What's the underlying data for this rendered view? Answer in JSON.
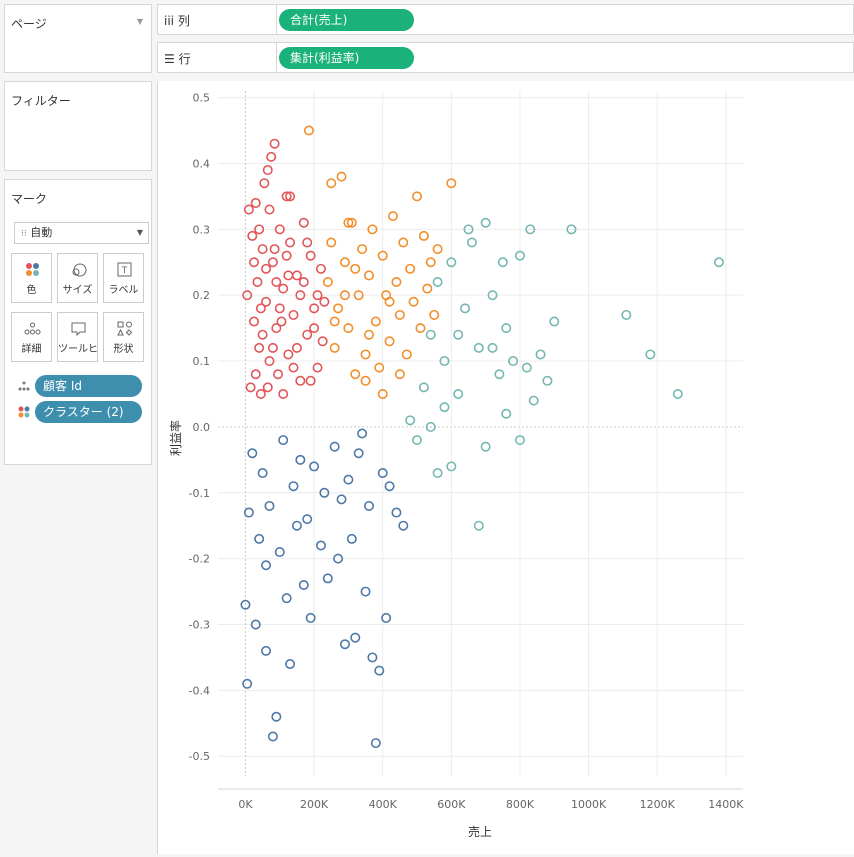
{
  "left_panel": {
    "pages_title": "ページ",
    "filters_title": "フィルター",
    "marks_title": "マーク",
    "mark_type": "自動",
    "mark_buttons": [
      {
        "label": "色",
        "icon": "color-icon"
      },
      {
        "label": "サイズ",
        "icon": "size-icon"
      },
      {
        "label": "ラベル",
        "icon": "label-icon"
      },
      {
        "label": "詳細",
        "icon": "detail-icon"
      },
      {
        "label": "ツールヒ…",
        "icon": "tooltip-icon"
      },
      {
        "label": "形状",
        "icon": "shape-icon"
      }
    ],
    "mark_fields": [
      {
        "label": "顧客 Id",
        "icon": "detail-dots-icon"
      },
      {
        "label": "クラスター (2)",
        "icon": "color-dots-icon"
      }
    ]
  },
  "shelves": {
    "columns_label": "iii  列",
    "columns_pill": "合計(売上)",
    "rows_label": "☰  行",
    "rows_pill": "集計(利益率)"
  },
  "colors": {
    "cluster1": "#e15759",
    "cluster2": "#f28e2b",
    "cluster3": "#76b7b2",
    "cluster4": "#4e79a7",
    "pill_green": "#1bb17a",
    "pill_blue": "#3e8eae"
  },
  "chart_data": {
    "type": "scatter",
    "xlabel": "売上",
    "ylabel": "利益率",
    "xlim": [
      -80000,
      1450000
    ],
    "ylim": [
      -0.53,
      0.51
    ],
    "x_ticks": [
      0,
      200000,
      400000,
      600000,
      800000,
      1000000,
      1200000,
      1400000
    ],
    "x_tick_labels": [
      "0K",
      "200K",
      "400K",
      "600K",
      "800K",
      "1000K",
      "1200K",
      "1400K"
    ],
    "y_ticks": [
      0.5,
      0.4,
      0.3,
      0.2,
      0.1,
      0.0,
      -0.1,
      -0.2,
      -0.3,
      -0.4,
      -0.5
    ],
    "y_tick_labels": [
      "0.5",
      "0.4",
      "0.3",
      "0.2",
      "0.1",
      "0.0",
      "-0.1",
      "-0.2",
      "-0.3",
      "-0.4",
      "-0.5"
    ],
    "grid": true,
    "series": [
      {
        "color_key": "cluster1",
        "points": [
          [
            5000,
            0.2
          ],
          [
            10000,
            0.33
          ],
          [
            15000,
            0.06
          ],
          [
            20000,
            0.29
          ],
          [
            25000,
            0.16
          ],
          [
            30000,
            0.34
          ],
          [
            35000,
            0.22
          ],
          [
            40000,
            0.12
          ],
          [
            45000,
            0.05
          ],
          [
            50000,
            0.27
          ],
          [
            55000,
            0.37
          ],
          [
            60000,
            0.19
          ],
          [
            65000,
            0.39
          ],
          [
            70000,
            0.1
          ],
          [
            75000,
            0.41
          ],
          [
            80000,
            0.25
          ],
          [
            85000,
            0.43
          ],
          [
            90000,
            0.15
          ],
          [
            95000,
            0.08
          ],
          [
            100000,
            0.3
          ],
          [
            110000,
            0.21
          ],
          [
            120000,
            0.35
          ],
          [
            125000,
            0.11
          ],
          [
            130000,
            0.28
          ],
          [
            140000,
            0.17
          ],
          [
            150000,
            0.23
          ],
          [
            160000,
            0.07
          ],
          [
            170000,
            0.31
          ],
          [
            180000,
            0.14
          ],
          [
            190000,
            0.26
          ],
          [
            200000,
            0.18
          ],
          [
            210000,
            0.09
          ],
          [
            220000,
            0.24
          ],
          [
            225000,
            0.13
          ],
          [
            230000,
            0.19
          ],
          [
            30000,
            0.08
          ],
          [
            40000,
            0.3
          ],
          [
            60000,
            0.24
          ],
          [
            80000,
            0.12
          ],
          [
            100000,
            0.18
          ],
          [
            120000,
            0.26
          ],
          [
            140000,
            0.09
          ],
          [
            160000,
            0.2
          ],
          [
            180000,
            0.28
          ],
          [
            200000,
            0.15
          ],
          [
            50000,
            0.14
          ],
          [
            70000,
            0.33
          ],
          [
            90000,
            0.22
          ],
          [
            110000,
            0.05
          ],
          [
            130000,
            0.35
          ],
          [
            150000,
            0.12
          ],
          [
            170000,
            0.22
          ],
          [
            190000,
            0.07
          ],
          [
            210000,
            0.2
          ],
          [
            25000,
            0.25
          ],
          [
            45000,
            0.18
          ],
          [
            65000,
            0.06
          ],
          [
            85000,
            0.27
          ],
          [
            105000,
            0.16
          ],
          [
            125000,
            0.23
          ]
        ]
      },
      {
        "color_key": "cluster2",
        "points": [
          [
            240000,
            0.22
          ],
          [
            250000,
            0.28
          ],
          [
            260000,
            0.12
          ],
          [
            270000,
            0.18
          ],
          [
            280000,
            0.38
          ],
          [
            290000,
            0.25
          ],
          [
            300000,
            0.15
          ],
          [
            310000,
            0.31
          ],
          [
            320000,
            0.08
          ],
          [
            330000,
            0.2
          ],
          [
            340000,
            0.27
          ],
          [
            350000,
            0.11
          ],
          [
            360000,
            0.23
          ],
          [
            370000,
            0.3
          ],
          [
            380000,
            0.16
          ],
          [
            390000,
            0.09
          ],
          [
            400000,
            0.26
          ],
          [
            410000,
            0.2
          ],
          [
            420000,
            0.13
          ],
          [
            430000,
            0.32
          ],
          [
            440000,
            0.22
          ],
          [
            450000,
            0.17
          ],
          [
            460000,
            0.28
          ],
          [
            470000,
            0.11
          ],
          [
            480000,
            0.24
          ],
          [
            490000,
            0.19
          ],
          [
            500000,
            0.35
          ],
          [
            510000,
            0.15
          ],
          [
            520000,
            0.29
          ],
          [
            530000,
            0.21
          ],
          [
            540000,
            0.25
          ],
          [
            550000,
            0.17
          ],
          [
            560000,
            0.27
          ],
          [
            600000,
            0.37
          ],
          [
            185000,
            0.45
          ],
          [
            250000,
            0.37
          ],
          [
            300000,
            0.31
          ],
          [
            350000,
            0.07
          ],
          [
            400000,
            0.05
          ],
          [
            450000,
            0.08
          ],
          [
            260000,
            0.16
          ],
          [
            290000,
            0.2
          ],
          [
            320000,
            0.24
          ],
          [
            360000,
            0.14
          ],
          [
            420000,
            0.19
          ]
        ]
      },
      {
        "color_key": "cluster3",
        "points": [
          [
            480000,
            0.01
          ],
          [
            500000,
            -0.02
          ],
          [
            520000,
            0.06
          ],
          [
            540000,
            0.14
          ],
          [
            560000,
            0.22
          ],
          [
            580000,
            0.1
          ],
          [
            600000,
            0.25
          ],
          [
            620000,
            0.05
          ],
          [
            640000,
            0.18
          ],
          [
            660000,
            0.28
          ],
          [
            680000,
            0.12
          ],
          [
            700000,
            -0.03
          ],
          [
            720000,
            0.2
          ],
          [
            740000,
            0.08
          ],
          [
            760000,
            0.15
          ],
          [
            780000,
            0.1
          ],
          [
            800000,
            0.26
          ],
          [
            820000,
            0.09
          ],
          [
            840000,
            0.04
          ],
          [
            860000,
            0.11
          ],
          [
            880000,
            0.07
          ],
          [
            900000,
            0.16
          ],
          [
            950000,
            0.3
          ],
          [
            1110000,
            0.17
          ],
          [
            1180000,
            0.11
          ],
          [
            1260000,
            0.05
          ],
          [
            1380000,
            0.25
          ],
          [
            680000,
            -0.15
          ],
          [
            600000,
            -0.06
          ],
          [
            560000,
            -0.07
          ],
          [
            650000,
            0.3
          ],
          [
            700000,
            0.31
          ],
          [
            750000,
            0.25
          ],
          [
            800000,
            -0.02
          ],
          [
            620000,
            0.14
          ],
          [
            580000,
            0.03
          ],
          [
            540000,
            0.0
          ],
          [
            720000,
            0.12
          ],
          [
            760000,
            0.02
          ],
          [
            830000,
            0.3
          ]
        ]
      },
      {
        "color_key": "cluster4",
        "points": [
          [
            5000,
            -0.39
          ],
          [
            10000,
            -0.13
          ],
          [
            20000,
            -0.04
          ],
          [
            40000,
            -0.17
          ],
          [
            60000,
            -0.34
          ],
          [
            80000,
            -0.47
          ],
          [
            90000,
            -0.44
          ],
          [
            100000,
            -0.19
          ],
          [
            120000,
            -0.26
          ],
          [
            130000,
            -0.36
          ],
          [
            140000,
            -0.09
          ],
          [
            150000,
            -0.15
          ],
          [
            170000,
            -0.24
          ],
          [
            190000,
            -0.29
          ],
          [
            200000,
            -0.06
          ],
          [
            220000,
            -0.18
          ],
          [
            240000,
            -0.23
          ],
          [
            260000,
            -0.03
          ],
          [
            280000,
            -0.11
          ],
          [
            290000,
            -0.33
          ],
          [
            300000,
            -0.08
          ],
          [
            310000,
            -0.17
          ],
          [
            320000,
            -0.32
          ],
          [
            340000,
            -0.01
          ],
          [
            350000,
            -0.25
          ],
          [
            360000,
            -0.12
          ],
          [
            370000,
            -0.35
          ],
          [
            380000,
            -0.48
          ],
          [
            390000,
            -0.37
          ],
          [
            400000,
            -0.07
          ],
          [
            410000,
            -0.29
          ],
          [
            420000,
            -0.09
          ],
          [
            440000,
            -0.13
          ],
          [
            460000,
            -0.15
          ],
          [
            30000,
            -0.3
          ],
          [
            50000,
            -0.07
          ],
          [
            70000,
            -0.12
          ],
          [
            110000,
            -0.02
          ],
          [
            160000,
            -0.05
          ],
          [
            180000,
            -0.14
          ],
          [
            230000,
            -0.1
          ],
          [
            270000,
            -0.2
          ],
          [
            330000,
            -0.04
          ],
          [
            0,
            -0.27
          ],
          [
            60000,
            -0.21
          ]
        ]
      }
    ]
  }
}
